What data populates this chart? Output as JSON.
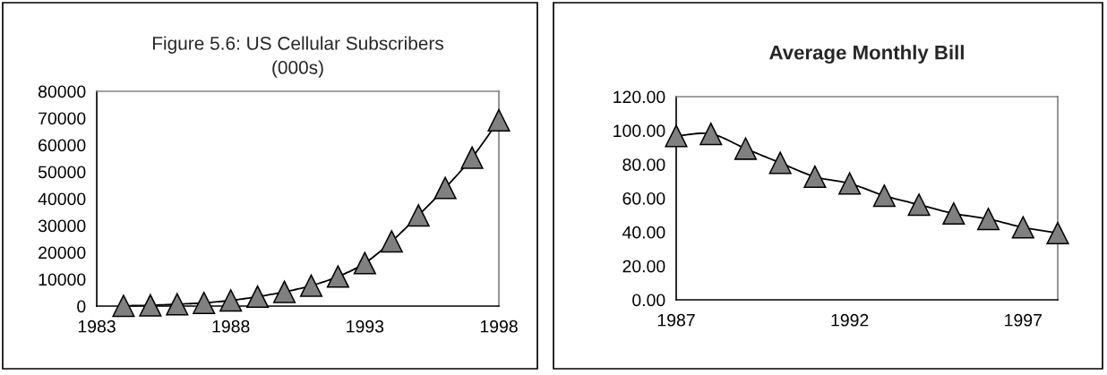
{
  "chart_data": [
    {
      "type": "line",
      "title": "Figure 5.6: US Cellular Subscribers\n(000s)",
      "x": [
        1984,
        1985,
        1986,
        1987,
        1988,
        1989,
        1990,
        1991,
        1992,
        1993,
        1994,
        1995,
        1996,
        1997,
        1998
      ],
      "series": [
        {
          "color": "#808080",
          "values": [
            100,
            300,
            700,
            1200,
            2100,
            3500,
            5300,
            7600,
            11000,
            16000,
            24100,
            33800,
            44000,
            55300,
            69200
          ]
        }
      ],
      "xlim": [
        1983,
        1998
      ],
      "xticks": [
        1983,
        1988,
        1993,
        1998
      ],
      "ylim": [
        0,
        80000
      ],
      "yticks": [
        0,
        10000,
        20000,
        30000,
        40000,
        50000,
        60000,
        70000,
        80000
      ],
      "marker": "triangle",
      "line_style": "solid",
      "grid": false,
      "legend": false
    },
    {
      "type": "line",
      "title": "Average Monthly Bill",
      "x": [
        1987,
        1988,
        1989,
        1990,
        1991,
        1992,
        1993,
        1994,
        1995,
        1996,
        1997,
        1998
      ],
      "series": [
        {
          "color": "#808080",
          "values": [
            96.8,
            98.0,
            89.3,
            80.9,
            72.7,
            68.7,
            61.5,
            56.2,
            51.0,
            47.7,
            42.8,
            39.4
          ]
        }
      ],
      "xlim": [
        1987,
        1998
      ],
      "xticks": [
        1987,
        1992,
        1997
      ],
      "ylim": [
        0,
        120
      ],
      "yticks": [
        {
          "value": 0,
          "label": "0.00"
        },
        {
          "value": 20,
          "label": "20.00"
        },
        {
          "value": 40,
          "label": "40.00"
        },
        {
          "value": 60,
          "label": "60.00"
        },
        {
          "value": 80,
          "label": "80.00"
        },
        {
          "value": 100,
          "label": "100.00"
        },
        {
          "value": 120,
          "label": "120.00"
        }
      ],
      "marker": "triangle",
      "line_style": "solid",
      "grid": false,
      "legend": false
    }
  ]
}
